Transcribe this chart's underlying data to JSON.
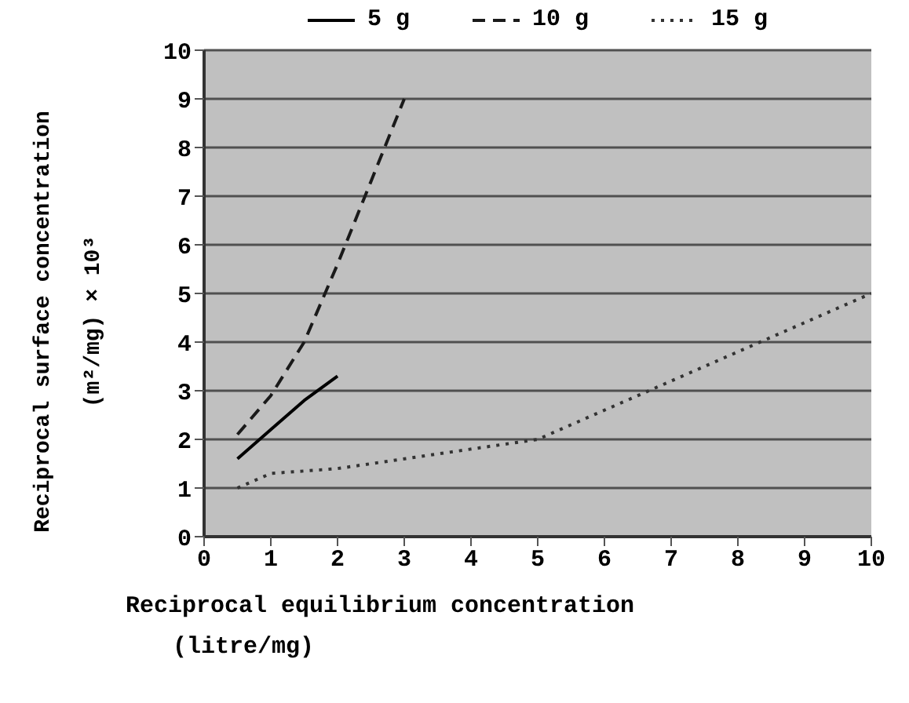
{
  "chart_data": {
    "type": "line",
    "xlabel": "Reciprocal equilibrium concentration\n(litre/mg)",
    "ylabel": "Reciprocal surface concentration\n(m²/mg) × 10³",
    "xlim": [
      0,
      10
    ],
    "ylim": [
      0,
      10
    ],
    "xticks": [
      0,
      1,
      2,
      3,
      4,
      5,
      6,
      7,
      8,
      9,
      10
    ],
    "yticks": [
      0,
      1,
      2,
      3,
      4,
      5,
      6,
      7,
      8,
      9,
      10
    ],
    "grid": "y",
    "legend": "top",
    "marker": "none",
    "series": [
      {
        "name": "5 g",
        "color": "#000000",
        "line_style": "solid",
        "x": [
          0.5,
          1,
          1.5,
          2
        ],
        "values": [
          1.6,
          2.2,
          2.8,
          3.3
        ]
      },
      {
        "name": "10 g",
        "color": "#1a1a1a",
        "line_style": "dashed",
        "x": [
          0.5,
          1,
          1.5,
          2,
          2.5,
          3
        ],
        "values": [
          2.1,
          2.9,
          4.0,
          5.6,
          7.3,
          9.0
        ]
      },
      {
        "name": "15 g",
        "color": "#333333",
        "line_style": "dotted",
        "x": [
          0.5,
          1,
          2,
          5,
          10
        ],
        "values": [
          1.0,
          1.3,
          1.4,
          2.0,
          5.0
        ]
      }
    ]
  }
}
